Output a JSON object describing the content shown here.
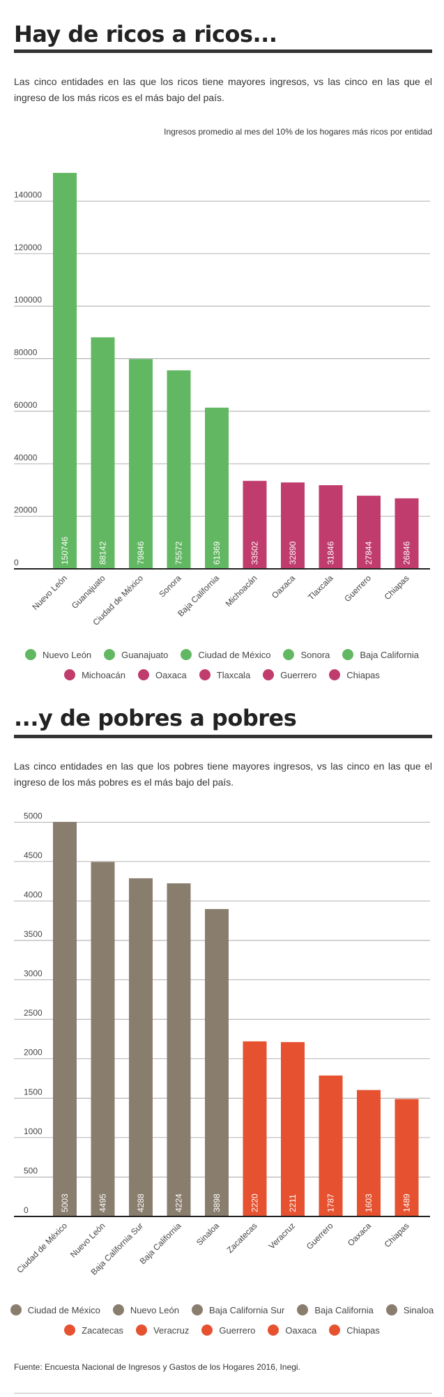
{
  "section1": {
    "title": "Hay de ricos a ricos...",
    "intro": "Las cinco entidades en las que los ricos tiene mayores ingresos, vs las cinco en las que el ingreso de los más ricos es el más bajo del país.",
    "chart_subtitle": "Ingresos promedio al mes del 10% de los hogares más ricos por entidad",
    "legend": [
      [
        {
          "label": "Nuevo León",
          "color": "#62b862"
        },
        {
          "label": "Guanajuato",
          "color": "#62b862"
        },
        {
          "label": "Ciudad de México",
          "color": "#62b862"
        },
        {
          "label": "Sonora",
          "color": "#62b862"
        },
        {
          "label": "Baja California",
          "color": "#62b862"
        }
      ],
      [
        {
          "label": "Michoacán",
          "color": "#c03c6c"
        },
        {
          "label": "Oaxaca",
          "color": "#c03c6c"
        },
        {
          "label": "Tlaxcala",
          "color": "#c03c6c"
        },
        {
          "label": "Guerrero",
          "color": "#c03c6c"
        },
        {
          "label": "Chiapas",
          "color": "#c03c6c"
        }
      ]
    ]
  },
  "section2": {
    "title": "...y de pobres a pobres",
    "intro": "Las cinco entidades en las que los pobres tiene mayores ingresos, vs las cinco en las que el ingreso de los más pobres es el más bajo del país.",
    "legend": [
      [
        {
          "label": "Ciudad de México",
          "color": "#897d6e"
        },
        {
          "label": "Nuevo León",
          "color": "#897d6e"
        },
        {
          "label": "Baja California Sur",
          "color": "#897d6e"
        },
        {
          "label": "Baja California",
          "color": "#897d6e"
        },
        {
          "label": "Sinaloa",
          "color": "#897d6e"
        }
      ],
      [
        {
          "label": "Zacatecas",
          "color": "#e65130"
        },
        {
          "label": "Veracruz",
          "color": "#e65130"
        },
        {
          "label": "Guerrero",
          "color": "#e65130"
        },
        {
          "label": "Oaxaca",
          "color": "#e65130"
        },
        {
          "label": "Chiapas",
          "color": "#e65130"
        }
      ]
    ]
  },
  "source": "Fuente: Encuesta Nacional de Ingresos y Gastos de los Hogares 2016, Inegi.",
  "chart_data": [
    {
      "type": "bar",
      "title": "Ingresos promedio al mes del 10% de los hogares más ricos por entidad",
      "categories": [
        "Nuevo León",
        "Guanajuato",
        "Ciudad de México",
        "Sonora",
        "Baja California",
        "Michoacán",
        "Oaxaca",
        "Tlaxcala",
        "Guerrero",
        "Chiapas"
      ],
      "values": [
        150746,
        88142,
        79846,
        75572,
        61369,
        33502,
        32890,
        31846,
        27844,
        26846
      ],
      "colors": [
        "#62b862",
        "#62b862",
        "#62b862",
        "#62b862",
        "#62b862",
        "#c03c6c",
        "#c03c6c",
        "#c03c6c",
        "#c03c6c",
        "#c03c6c"
      ],
      "yticks": [
        0,
        20000,
        40000,
        60000,
        80000,
        100000,
        120000,
        140000
      ],
      "ylim": [
        0,
        150746
      ],
      "grid": true,
      "legend_position": "bottom"
    },
    {
      "type": "bar",
      "categories": [
        "Ciudad de México",
        "Nuevo León",
        "Baja California Sur",
        "Baja California",
        "Sinaloa",
        "Zacatecas",
        "Veracruz",
        "Guerrero",
        "Oaxaca",
        "Chiapas"
      ],
      "values": [
        5003,
        4495,
        4288,
        4224,
        3898,
        2220,
        2211,
        1787,
        1603,
        1489
      ],
      "colors": [
        "#897d6e",
        "#897d6e",
        "#897d6e",
        "#897d6e",
        "#897d6e",
        "#e65130",
        "#e65130",
        "#e65130",
        "#e65130",
        "#e65130"
      ],
      "yticks": [
        0,
        500,
        1000,
        1500,
        2000,
        2500,
        3000,
        3500,
        4000,
        4500,
        5000
      ],
      "ylim": [
        0,
        5003
      ],
      "grid": true,
      "legend_position": "bottom"
    }
  ]
}
